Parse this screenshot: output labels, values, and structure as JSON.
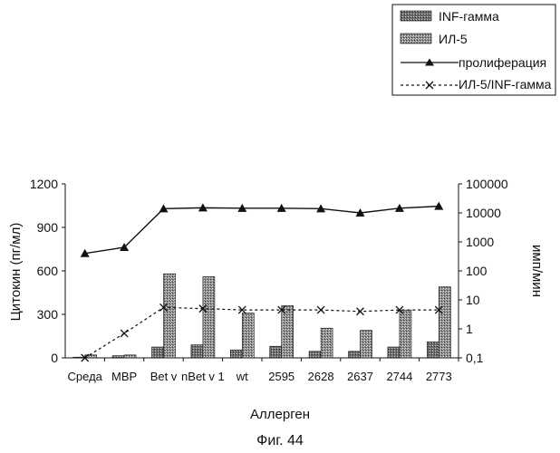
{
  "figure_caption": "Фиг. 44",
  "chart_data": {
    "type": "bar",
    "categories": [
      "Среда",
      "MBP",
      "Bet v",
      "nBet v 1",
      "wt",
      "2595",
      "2628",
      "2637",
      "2744",
      "2773"
    ],
    "xlabel": "Аллерген",
    "ylabel": "Цитокин (пг/мл)",
    "y2label": "имп/мин",
    "ylim": [
      0,
      1200
    ],
    "yticks": [
      0,
      300,
      600,
      900,
      1200
    ],
    "y2lim": [
      0.1,
      100000
    ],
    "y2scale": "log",
    "y2ticks": [
      "0,1",
      "1",
      "10",
      "100",
      "1000",
      "10000",
      "100000"
    ],
    "grid": false,
    "legend_position": "top-right",
    "series": [
      {
        "name": "INF-гамма",
        "type": "bar",
        "axis": "left",
        "values": [
          5,
          15,
          75,
          90,
          55,
          80,
          45,
          45,
          75,
          110
        ]
      },
      {
        "name": "ИЛ-5",
        "type": "bar",
        "axis": "left",
        "values": [
          20,
          20,
          580,
          560,
          310,
          360,
          205,
          190,
          330,
          490
        ]
      },
      {
        "name": "пролиферация",
        "type": "line",
        "axis": "right",
        "marker": "triangle",
        "values": [
          400,
          650,
          14000,
          15000,
          14500,
          14500,
          14000,
          10000,
          14500,
          17000
        ]
      },
      {
        "name": "ИЛ-5/INF-гамма",
        "type": "line",
        "axis": "right",
        "marker": "x",
        "dash": true,
        "values": [
          0.1,
          0.7,
          5.5,
          5,
          4.5,
          4.5,
          4.5,
          4,
          4.5,
          4.5
        ]
      }
    ]
  }
}
